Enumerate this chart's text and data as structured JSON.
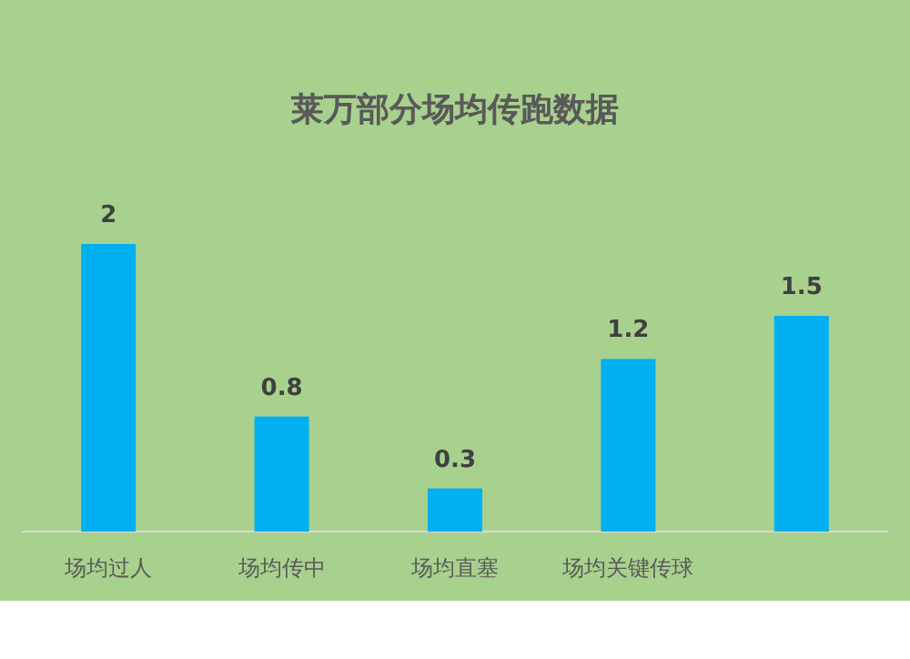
{
  "chart_data": {
    "type": "bar",
    "title": "莱万部分场均传跑数据",
    "categories": [
      "场均过人",
      "场均传中",
      "场均直塞",
      "场均关键传球",
      null
    ],
    "values": [
      2,
      0.8,
      0.3,
      1.2,
      1.5
    ],
    "color": "#00b0f0",
    "data_labels": true
  }
}
